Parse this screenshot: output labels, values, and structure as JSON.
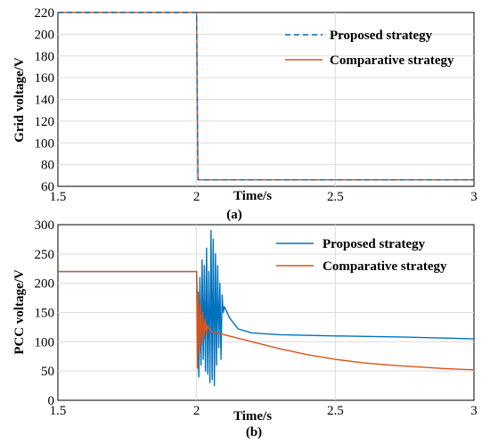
{
  "chart_data": [
    {
      "type": "line",
      "caption": "(a)",
      "xlabel": "Time/s",
      "ylabel": "Grid voltage/V",
      "xlim": [
        1.5,
        3
      ],
      "ylim": [
        60,
        220
      ],
      "xticks": [
        "1.5",
        "2",
        "2.5",
        "3"
      ],
      "yticks": [
        "60",
        "80",
        "100",
        "120",
        "140",
        "160",
        "180",
        "200",
        "220"
      ],
      "grid": true,
      "legend_position": "top-right",
      "series": [
        {
          "name": "Proposed strategy",
          "color": "#0072BD",
          "style": "dashed",
          "points": [
            [
              1.5,
              220
            ],
            [
              2.0,
              220
            ],
            [
              2.005,
              66
            ],
            [
              3.0,
              66
            ]
          ]
        },
        {
          "name": "Comparative strategy",
          "color": "#D95319",
          "style": "solid",
          "points": [
            [
              1.5,
              220
            ],
            [
              2.0,
              220
            ],
            [
              2.005,
              66
            ],
            [
              3.0,
              66
            ]
          ]
        }
      ]
    },
    {
      "type": "line",
      "caption": "(b)",
      "xlabel": "Time/s",
      "ylabel": "PCC voltage/V",
      "xlim": [
        1.5,
        3
      ],
      "ylim": [
        0,
        300
      ],
      "xticks": [
        "1.5",
        "2",
        "2.5",
        "3"
      ],
      "yticks": [
        "0",
        "50",
        "100",
        "150",
        "200",
        "250",
        "300"
      ],
      "grid": true,
      "legend_position": "top-right",
      "series": [
        {
          "name": "Proposed strategy",
          "color": "#0072BD",
          "style": "solid",
          "points": [
            [
              1.5,
              220
            ],
            [
              2.0,
              220
            ],
            [
              2.004,
              150
            ],
            [
              2.008,
              40
            ],
            [
              2.012,
              210
            ],
            [
              2.016,
              60
            ],
            [
              2.02,
              240
            ],
            [
              2.024,
              70
            ],
            [
              2.028,
              230
            ],
            [
              2.032,
              50
            ],
            [
              2.036,
              260
            ],
            [
              2.04,
              45
            ],
            [
              2.044,
              220
            ],
            [
              2.048,
              30
            ],
            [
              2.052,
              290
            ],
            [
              2.056,
              35
            ],
            [
              2.06,
              275
            ],
            [
              2.064,
              25
            ],
            [
              2.068,
              250
            ],
            [
              2.072,
              60
            ],
            [
              2.076,
              230
            ],
            [
              2.08,
              90
            ],
            [
              2.084,
              200
            ],
            [
              2.088,
              70
            ],
            [
              2.092,
              180
            ],
            [
              2.096,
              150
            ],
            [
              2.1,
              160
            ],
            [
              2.12,
              140
            ],
            [
              2.15,
              122
            ],
            [
              2.2,
              115
            ],
            [
              2.3,
              112
            ],
            [
              2.5,
              110
            ],
            [
              2.75,
              108
            ],
            [
              3.0,
              105
            ]
          ]
        },
        {
          "name": "Comparative strategy",
          "color": "#D95319",
          "style": "solid",
          "points": [
            [
              1.5,
              220
            ],
            [
              2.0,
              220
            ],
            [
              2.003,
              55
            ],
            [
              2.006,
              185
            ],
            [
              2.01,
              80
            ],
            [
              2.014,
              165
            ],
            [
              2.018,
              95
            ],
            [
              2.022,
              150
            ],
            [
              2.026,
              105
            ],
            [
              2.03,
              138
            ],
            [
              2.035,
              112
            ],
            [
              2.04,
              128
            ],
            [
              2.05,
              118
            ],
            [
              2.07,
              115
            ],
            [
              2.1,
              112
            ],
            [
              2.2,
              100
            ],
            [
              2.3,
              88
            ],
            [
              2.4,
              78
            ],
            [
              2.5,
              70
            ],
            [
              2.6,
              64
            ],
            [
              2.7,
              60
            ],
            [
              2.8,
              57
            ],
            [
              2.9,
              54
            ],
            [
              3.0,
              52
            ]
          ]
        }
      ]
    }
  ]
}
